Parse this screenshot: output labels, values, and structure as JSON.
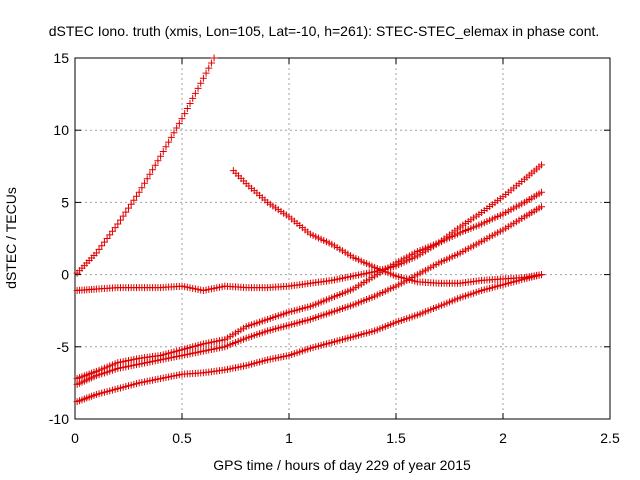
{
  "chart_data": {
    "type": "scatter",
    "title": "dSTEC Iono. truth (xmis, Lon=105, Lat=-10, h=261): STEC-STEC_elemax in phase cont.",
    "xlabel": "GPS time / hours of day 229 of year 2015",
    "ylabel": "dSTEC  / TECUs",
    "xlim": [
      0,
      2.5
    ],
    "ylim": [
      -10,
      15
    ],
    "xticks": [
      0,
      0.5,
      1,
      1.5,
      2,
      2.5
    ],
    "xtick_labels": [
      "0",
      "0.5",
      "1",
      "1.5",
      "2",
      "2.5"
    ],
    "yticks": [
      -10,
      -5,
      0,
      5,
      10,
      15
    ],
    "ytick_labels": [
      "-10",
      "-5",
      "0",
      "5",
      "10",
      "15"
    ],
    "grid": true,
    "marker": "plus",
    "marker_color": "#e00000",
    "series": [
      {
        "x": [
          0.01,
          0.1,
          0.2,
          0.3,
          0.4,
          0.5,
          0.6,
          0.65
        ],
        "y": [
          0.1,
          1.5,
          3.5,
          5.7,
          8.2,
          10.8,
          13.6,
          15.0
        ]
      },
      {
        "x": [
          0.74,
          0.8,
          0.9,
          1.0,
          1.1,
          1.2,
          1.3,
          1.4,
          1.5,
          1.6,
          1.7,
          1.8,
          1.9,
          2.0,
          2.1,
          2.18
        ],
        "y": [
          7.2,
          6.3,
          5.0,
          4.0,
          2.8,
          2.1,
          1.2,
          0.5,
          -0.1,
          -0.5,
          -0.6,
          -0.6,
          -0.4,
          -0.3,
          -0.2,
          0.0
        ]
      },
      {
        "x": [
          0.01,
          0.1,
          0.2,
          0.3,
          0.4,
          0.5,
          0.6,
          0.7,
          0.8,
          0.9,
          1.0,
          1.1,
          1.2,
          1.3,
          1.4,
          1.5,
          1.6,
          1.7,
          1.8,
          1.9,
          2.0,
          2.1,
          2.18
        ],
        "y": [
          -1.1,
          -1.0,
          -0.9,
          -0.9,
          -0.9,
          -0.8,
          -1.1,
          -0.8,
          -0.9,
          -0.9,
          -0.8,
          -0.6,
          -0.4,
          -0.1,
          0.2,
          0.6,
          1.3,
          2.2,
          3.3,
          4.3,
          5.4,
          6.6,
          7.6
        ]
      },
      {
        "x": [
          0.01,
          0.1,
          0.2,
          0.3,
          0.4,
          0.5,
          0.6,
          0.7,
          0.8,
          0.9,
          1.0,
          1.1,
          1.2,
          1.3,
          1.4,
          1.5,
          1.6,
          1.7,
          1.8,
          1.9,
          2.0,
          2.1,
          2.18
        ],
        "y": [
          -7.2,
          -6.7,
          -6.1,
          -5.8,
          -5.6,
          -5.2,
          -4.8,
          -4.5,
          -3.6,
          -3.1,
          -2.6,
          -2.2,
          -1.6,
          -1.0,
          -0.1,
          0.8,
          1.6,
          2.2,
          2.9,
          3.5,
          4.2,
          5.0,
          5.7
        ]
      },
      {
        "x": [
          0.01,
          0.1,
          0.2,
          0.3,
          0.4,
          0.5,
          0.6,
          0.7,
          0.8,
          0.9,
          1.0,
          1.1,
          1.2,
          1.3,
          1.4,
          1.5,
          1.6,
          1.7,
          1.8,
          1.9,
          2.0,
          2.1,
          2.18
        ],
        "y": [
          -7.6,
          -7.0,
          -6.5,
          -6.2,
          -5.9,
          -5.6,
          -5.3,
          -5.0,
          -4.4,
          -3.9,
          -3.5,
          -3.1,
          -2.6,
          -2.1,
          -1.5,
          -0.8,
          0.0,
          0.8,
          1.5,
          2.3,
          3.1,
          4.0,
          4.7
        ]
      },
      {
        "x": [
          0.01,
          0.1,
          0.2,
          0.3,
          0.4,
          0.5,
          0.6,
          0.7,
          0.8,
          0.9,
          1.0,
          1.1,
          1.2,
          1.3,
          1.4,
          1.5,
          1.6,
          1.7,
          1.8,
          1.9,
          2.0,
          2.1,
          2.18
        ],
        "y": [
          -8.8,
          -8.3,
          -7.9,
          -7.5,
          -7.2,
          -6.9,
          -6.8,
          -6.6,
          -6.3,
          -5.9,
          -5.6,
          -5.1,
          -4.7,
          -4.3,
          -3.9,
          -3.3,
          -2.8,
          -2.2,
          -1.6,
          -1.1,
          -0.7,
          -0.3,
          0.0
        ]
      }
    ]
  }
}
